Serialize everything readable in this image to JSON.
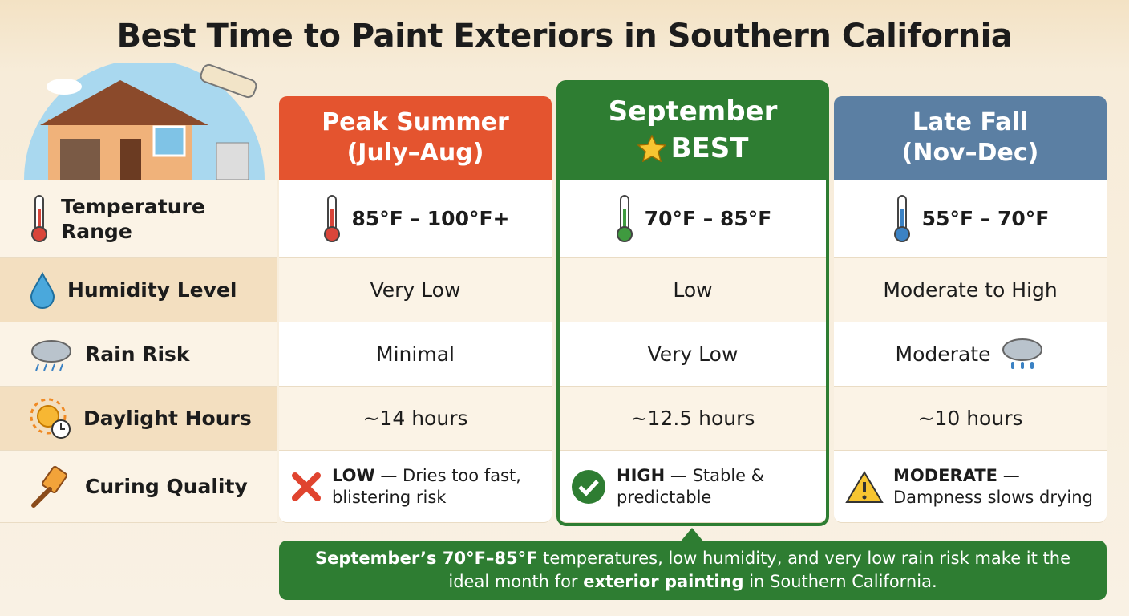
{
  "header": {
    "title": "Best Time to Paint Exteriors in Southern California"
  },
  "columns": [
    {
      "title": [
        "Peak Summer",
        "(July–Aug)"
      ],
      "color": "#e4542f"
    },
    {
      "title": [
        "September",
        "BEST"
      ],
      "color": "#2e7d32"
    },
    {
      "title": [
        "Late Fall",
        "(Nov–Dec)"
      ],
      "color": "#5b7fa3"
    }
  ],
  "rows": [
    {
      "label": "Temperature Range",
      "cells": [
        "85°F – 100°F+",
        "70°F – 85°F",
        "55°F – 70°F"
      ]
    },
    {
      "label": "Humidity Level",
      "cells": [
        "Very Low",
        "Low",
        "Moderate to High"
      ]
    },
    {
      "label": "Rain Risk",
      "cells": [
        "Minimal",
        "Very Low",
        "Moderate"
      ]
    },
    {
      "label": "Daylight Hours",
      "cells": [
        "~14 hours",
        "~12.5 hours",
        "~10 hours"
      ]
    },
    {
      "label": "Curing Quality",
      "cells": [
        {
          "strong": "LOW",
          "rest": "— Dries too fast, blistering risk"
        },
        {
          "strong": "HIGH",
          "rest": "— Stable & predictable"
        },
        {
          "strong": "MODERATE",
          "rest": "— Dampness slows drying"
        }
      ]
    }
  ],
  "footer": {
    "segments": [
      {
        "text": "September’s 70°F–85°F",
        "bold": true
      },
      {
        "text": " temperatures, low humidity, and very low rain risk make it the ideal month for ",
        "bold": false
      },
      {
        "text": "exterior painting",
        "bold": true
      },
      {
        "text": " in Southern California.",
        "bold": false
      }
    ]
  }
}
